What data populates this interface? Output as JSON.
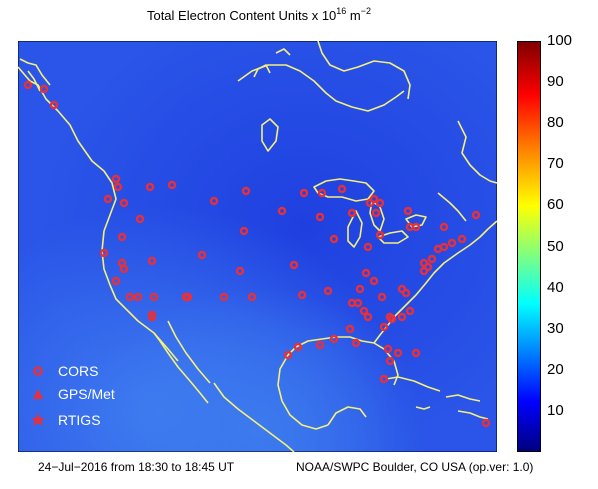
{
  "title": {
    "prefix": "Total Electron Content Units x 10",
    "exponent": "16",
    "unit": " m",
    "unit_exponent": "−2"
  },
  "colorbar": {
    "min": 0,
    "max": 100,
    "ticks": [
      "10",
      "20",
      "30",
      "40",
      "50",
      "60",
      "70",
      "80",
      "90",
      "100"
    ]
  },
  "legend": [
    {
      "label": "CORS",
      "marker": "circle"
    },
    {
      "label": "GPS/Met",
      "marker": "triangle"
    },
    {
      "label": "RTIGS",
      "marker": "star"
    }
  ],
  "footer": {
    "left": "24−Jul−2016 from 18:30 to 18:45 UT",
    "right": "NOAA/SWPC Boulder, CO USA (op.ver: 1.0)"
  },
  "colors": {
    "background_field": "#2a55e8",
    "coastline": "#f5f07a",
    "station_marker": "#e8303a"
  },
  "station_count": 86
}
